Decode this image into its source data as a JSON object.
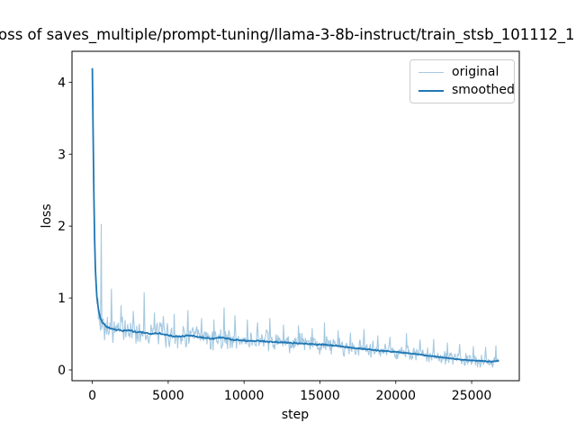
{
  "figure": {
    "title": "oss of saves_multiple/prompt-tuning/llama-3-8b-instruct/train_stsb_101112_1",
    "xlabel": "step",
    "ylabel": "loss"
  },
  "legend": {
    "position": "upper right",
    "items": [
      {
        "label": "original",
        "color": "#a5c9e1",
        "line_width": 1.5
      },
      {
        "label": "smoothed",
        "color": "#1f77b4",
        "line_width": 2
      }
    ]
  },
  "axes": {
    "xticks": [
      {
        "value": 0,
        "label": "0"
      },
      {
        "value": 5000,
        "label": "5000"
      },
      {
        "value": 10000,
        "label": "10000"
      },
      {
        "value": 15000,
        "label": "15000"
      },
      {
        "value": 20000,
        "label": "20000"
      },
      {
        "value": 25000,
        "label": "25000"
      }
    ],
    "yticks": [
      {
        "value": 0,
        "label": "0"
      },
      {
        "value": 1,
        "label": "1"
      },
      {
        "value": 2,
        "label": "2"
      },
      {
        "value": 3,
        "label": "3"
      },
      {
        "value": 4,
        "label": "4"
      }
    ],
    "xlim": [
      -1340,
      28140
    ],
    "ylim": [
      -0.15,
      4.43
    ],
    "frame_color": "#000000",
    "grid": false
  },
  "chart_data": {
    "type": "line",
    "title": "oss of saves_multiple/prompt-tuning/llama-3-8b-instruct/train_stsb_101112_1",
    "xlabel": "step",
    "ylabel": "loss",
    "x_max": 26800,
    "legend_position": "upper right",
    "series": [
      {
        "name": "original",
        "color": "#a5c9e1",
        "line_width": 1.1,
        "derivation": "smoothed keypoints plus uniform noise and positive spikes",
        "noise": {
          "seed": 42,
          "base": 0.045,
          "scale": 0.18,
          "cap": 0.75,
          "spread": 1.5,
          "step_interval": 45,
          "min": 0.03,
          "max": 4.2
        },
        "spikes": [
          [
            600,
            2.03
          ],
          [
            1250,
            1.13
          ],
          [
            1900,
            0.9
          ],
          [
            2700,
            0.82
          ],
          [
            3400,
            1.08
          ],
          [
            4100,
            0.8
          ],
          [
            4700,
            0.75
          ],
          [
            5400,
            0.78
          ],
          [
            6300,
            0.83
          ],
          [
            7200,
            0.72
          ],
          [
            8000,
            0.7
          ],
          [
            8700,
            0.87
          ],
          [
            9400,
            0.76
          ],
          [
            10200,
            0.7
          ],
          [
            10900,
            0.66
          ],
          [
            11700,
            0.72
          ],
          [
            12600,
            0.63
          ],
          [
            13600,
            0.62
          ],
          [
            14500,
            0.58
          ],
          [
            15300,
            0.66
          ],
          [
            16200,
            0.55
          ],
          [
            17000,
            0.52
          ],
          [
            17900,
            0.57
          ],
          [
            18800,
            0.48
          ],
          [
            19600,
            0.46
          ],
          [
            20700,
            0.51
          ],
          [
            21600,
            0.42
          ],
          [
            22500,
            0.43
          ],
          [
            23400,
            0.38
          ],
          [
            24200,
            0.36
          ],
          [
            25100,
            0.33
          ],
          [
            25900,
            0.32
          ],
          [
            26600,
            0.34
          ]
        ]
      },
      {
        "name": "smoothed",
        "color": "#1f77b4",
        "line_width": 1.8,
        "step_interval": 50,
        "keypoints": [
          [
            0,
            4.2
          ],
          [
            60,
            3.2
          ],
          [
            120,
            2.1
          ],
          [
            200,
            1.4
          ],
          [
            300,
            1.02
          ],
          [
            420,
            0.82
          ],
          [
            550,
            0.71
          ],
          [
            700,
            0.65
          ],
          [
            900,
            0.61
          ],
          [
            1200,
            0.575
          ],
          [
            1600,
            0.555
          ],
          [
            2000,
            0.545
          ],
          [
            2400,
            0.55
          ],
          [
            2800,
            0.53
          ],
          [
            3200,
            0.525
          ],
          [
            3600,
            0.51
          ],
          [
            4000,
            0.5
          ],
          [
            4400,
            0.515
          ],
          [
            4800,
            0.49
          ],
          [
            5200,
            0.475
          ],
          [
            5600,
            0.465
          ],
          [
            6000,
            0.47
          ],
          [
            6400,
            0.48
          ],
          [
            6800,
            0.465
          ],
          [
            7200,
            0.45
          ],
          [
            7600,
            0.44
          ],
          [
            8000,
            0.435
          ],
          [
            8400,
            0.45
          ],
          [
            8800,
            0.44
          ],
          [
            9200,
            0.42
          ],
          [
            9600,
            0.415
          ],
          [
            10000,
            0.41
          ],
          [
            10400,
            0.4
          ],
          [
            10800,
            0.405
          ],
          [
            11200,
            0.4
          ],
          [
            11600,
            0.39
          ],
          [
            12000,
            0.39
          ],
          [
            12400,
            0.385
          ],
          [
            12800,
            0.38
          ],
          [
            13200,
            0.375
          ],
          [
            13600,
            0.37
          ],
          [
            14000,
            0.365
          ],
          [
            14400,
            0.36
          ],
          [
            14800,
            0.35
          ],
          [
            15200,
            0.355
          ],
          [
            15600,
            0.345
          ],
          [
            16000,
            0.335
          ],
          [
            16400,
            0.325
          ],
          [
            16800,
            0.315
          ],
          [
            17200,
            0.305
          ],
          [
            17600,
            0.3
          ],
          [
            18000,
            0.29
          ],
          [
            18400,
            0.28
          ],
          [
            18800,
            0.27
          ],
          [
            19200,
            0.265
          ],
          [
            19600,
            0.255
          ],
          [
            20000,
            0.25
          ],
          [
            20400,
            0.24
          ],
          [
            20800,
            0.235
          ],
          [
            21200,
            0.225
          ],
          [
            21600,
            0.215
          ],
          [
            22000,
            0.2
          ],
          [
            22400,
            0.19
          ],
          [
            22800,
            0.18
          ],
          [
            23200,
            0.17
          ],
          [
            23600,
            0.16
          ],
          [
            24000,
            0.15
          ],
          [
            24400,
            0.14
          ],
          [
            24800,
            0.135
          ],
          [
            25200,
            0.13
          ],
          [
            25600,
            0.125
          ],
          [
            26000,
            0.12
          ],
          [
            26400,
            0.115
          ],
          [
            26800,
            0.125
          ]
        ]
      }
    ]
  }
}
